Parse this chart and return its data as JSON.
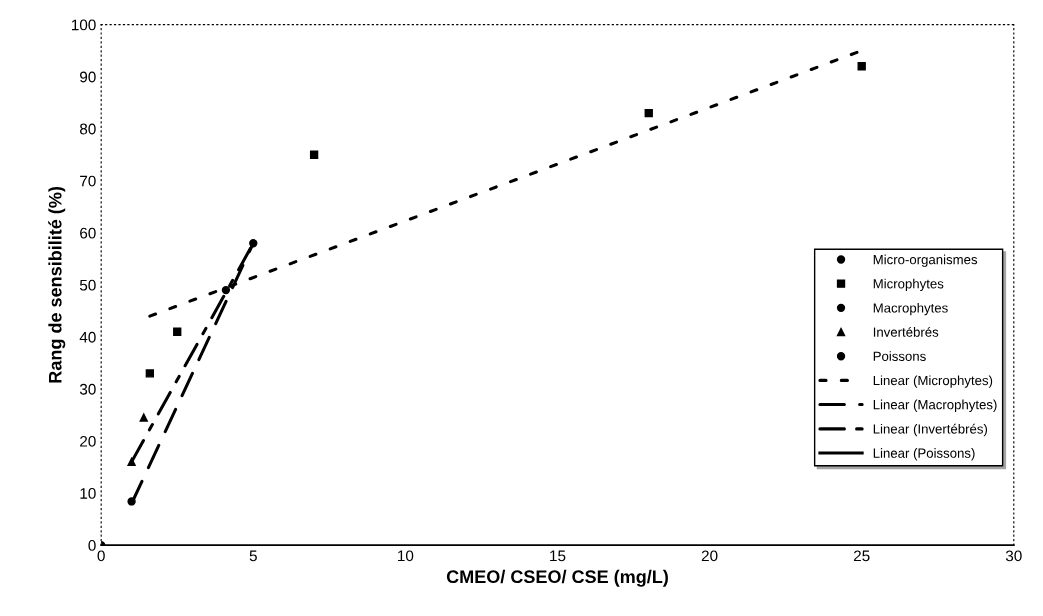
{
  "chart_data": {
    "type": "scatter",
    "xlabel": "CMEO/ CSEO/ CSE (mg/L)",
    "ylabel": "Rang de sensibilité (%)",
    "xlim": [
      0,
      30
    ],
    "xticks": [
      0,
      5,
      10,
      15,
      20,
      25,
      30
    ],
    "ylim": [
      0,
      100
    ],
    "yticks": [
      0,
      10,
      20,
      30,
      40,
      50,
      60,
      70,
      80,
      90,
      100
    ],
    "grid": false,
    "legend": "bottom right",
    "series": [
      {
        "name": "Micro-organismes",
        "color": "#000000",
        "marker": "circle",
        "x": [
          0
        ],
        "values": [
          0
        ]
      },
      {
        "name": "Microphytes",
        "color": "#000000",
        "marker": "square",
        "x": [
          1.6,
          2.5,
          7,
          18,
          25
        ],
        "values": [
          33,
          41,
          75,
          83,
          92
        ]
      },
      {
        "name": "Macrophytes",
        "color": "#000000",
        "marker": "circle",
        "x": [
          1,
          4.1,
          5
        ],
        "values": [
          8.4,
          49,
          58
        ]
      },
      {
        "name": "Invertébrés",
        "color": "#000000",
        "marker": "triangle",
        "x": [
          1,
          1.4
        ],
        "values": [
          16,
          24.5
        ]
      },
      {
        "name": "Poissons",
        "color": "#000000",
        "marker": "circle"
      },
      {
        "name": "Linear (Microphytes)",
        "type": "line",
        "color": "#000000",
        "line_style": "dotted",
        "marker": "none",
        "x": [
          1.6,
          25
        ],
        "values": [
          44,
          95
        ]
      },
      {
        "name": "Linear (Macrophytes)",
        "type": "line",
        "color": "#000000",
        "line_style": "dashed",
        "marker": "none",
        "x": [
          1,
          5
        ],
        "values": [
          8,
          58
        ]
      },
      {
        "name": "Linear (Invertébrés)",
        "type": "line",
        "color": "#000000",
        "line_style": "dashdot",
        "marker": "none",
        "x": [
          1,
          5
        ],
        "values": [
          16,
          58
        ]
      },
      {
        "name": "Linear (Poissons)",
        "type": "line",
        "color": "#000000",
        "line_style": "solid",
        "marker": "none"
      }
    ]
  }
}
